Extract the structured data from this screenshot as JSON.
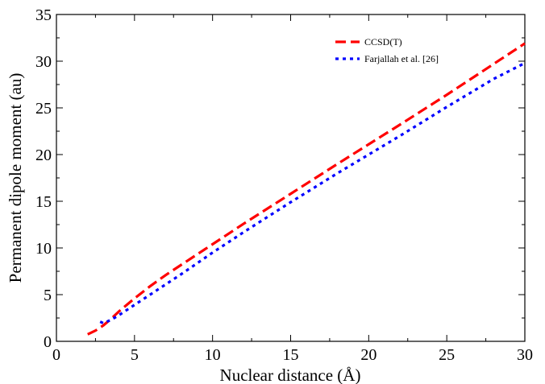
{
  "chart_data": {
    "type": "line",
    "title": "",
    "xlabel": "Nuclear distance (Å)",
    "ylabel": "Permanent dipole moment (au)",
    "xlim": [
      0,
      30
    ],
    "ylim": [
      0,
      35
    ],
    "xticks": [
      "0",
      "5",
      "10",
      "15",
      "20",
      "25",
      "30"
    ],
    "yticks": [
      "0",
      "5",
      "10",
      "15",
      "20",
      "25",
      "30",
      "35"
    ],
    "grid": false,
    "legend_position": "top-right",
    "series": [
      {
        "name": "CCSD(T)",
        "color": "#ff0000",
        "style": "dashed",
        "x": [
          2.0,
          2.5,
          3.0,
          3.5,
          4.0,
          5.0,
          6.0,
          7.0,
          8.0,
          10.0,
          12.0,
          15.0,
          18.0,
          20.0,
          22.0,
          25.0,
          28.0,
          30.0
        ],
        "y": [
          0.75,
          1.15,
          1.7,
          2.4,
          3.2,
          4.6,
          5.9,
          7.1,
          8.2,
          10.4,
          12.6,
          15.8,
          19.0,
          21.1,
          23.2,
          26.4,
          29.7,
          31.9
        ]
      },
      {
        "name": "Farjallah et al.  [26]",
        "color": "#0000ff",
        "style": "dotted",
        "x": [
          2.8,
          3.0,
          3.5,
          4.0,
          5.0,
          6.0,
          7.0,
          8.0,
          10.0,
          12.0,
          15.0,
          18.0,
          20.0,
          22.0,
          25.0,
          28.0,
          30.0
        ],
        "y": [
          2.1,
          1.95,
          2.3,
          2.8,
          3.9,
          5.0,
          6.1,
          7.2,
          9.5,
          11.7,
          14.9,
          18.0,
          20.0,
          22.0,
          25.1,
          28.1,
          29.8
        ]
      }
    ]
  }
}
